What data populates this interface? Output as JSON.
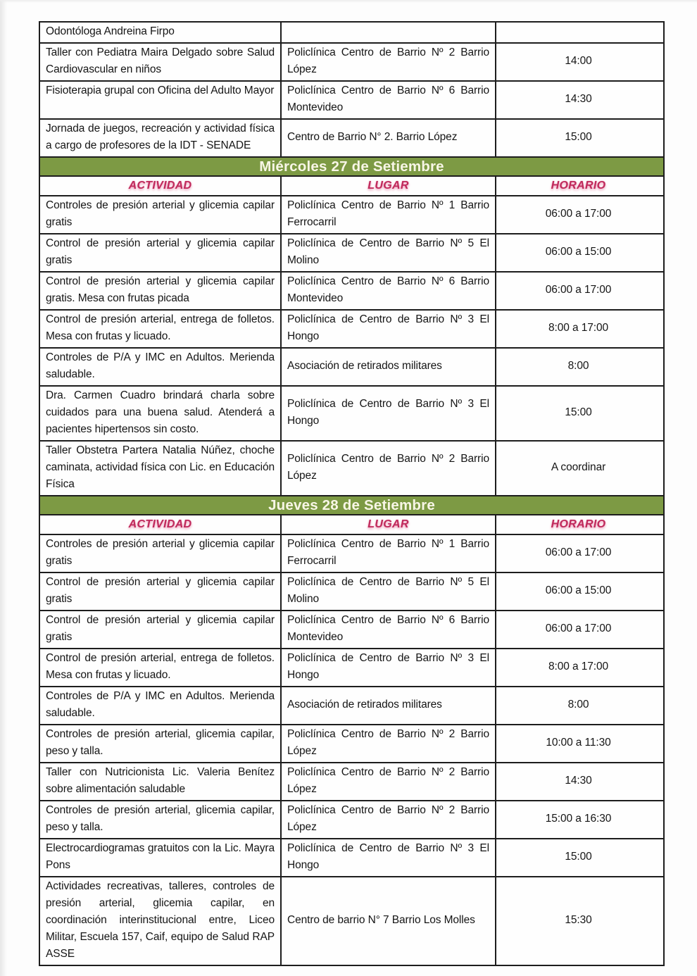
{
  "colors": {
    "page_bg": "#fdfdfd",
    "day_header_bg": "#7d9a44",
    "day_header_text": "#f8f6e6",
    "column_header_text": "#c02a5c",
    "grid_border": "#1d1d1d",
    "body_text": "#151515"
  },
  "columns": {
    "actividad": "ACTIVIDAD",
    "lugar": "LUGAR",
    "horario": "HORARIO"
  },
  "sections": [
    {
      "day_title": "",
      "show_column_headers": false,
      "rows": [
        {
          "actividad": "Odontóloga Andreina Firpo",
          "lugar": "",
          "horario": ""
        },
        {
          "actividad": "Taller con Pediatra Maira Delgado sobre Salud Cardiovascular en niños",
          "lugar": "Policlínica Centro de Barrio Nº 2 Barrio López",
          "horario": "14:00"
        },
        {
          "actividad": "Fisioterapia grupal con Oficina del Adulto Mayor",
          "lugar": "Policlínica Centro de Barrio Nº 6 Barrio Montevideo",
          "horario": "14:30"
        },
        {
          "actividad": "Jornada de juegos, recreación y actividad física a cargo de profesores de la IDT - SENADE",
          "lugar": "Centro de Barrio N° 2. Barrio López",
          "horario": "15:00"
        }
      ]
    },
    {
      "day_title": "Miércoles 27 de Setiembre",
      "show_column_headers": true,
      "rows": [
        {
          "actividad": "Controles de presión arterial y glicemia capilar gratis",
          "lugar": "Policlínica Centro de Barrio Nº 1 Barrio Ferrocarril",
          "horario": "06:00 a 17:00"
        },
        {
          "actividad": "Control de presión arterial y glicemia capilar gratis",
          "lugar": "Policlínica de Centro de Barrio Nº 5 El Molino",
          "horario": "06:00 a 15:00"
        },
        {
          "actividad": "Control de presión arterial y glicemia capilar gratis. Mesa con frutas picada",
          "lugar": "Policlínica Centro de Barrio Nº 6 Barrio Montevideo",
          "horario": "06:00 a 17:00"
        },
        {
          "actividad": "Control de presión arterial, entrega de folletos. Mesa con frutas y licuado.",
          "lugar": "Policlínica de Centro de Barrio Nº 3 El Hongo",
          "horario": "8:00 a 17:00"
        },
        {
          "actividad": "Controles de P/A y IMC en Adultos. Merienda saludable.",
          "lugar": "Asociación de retirados militares",
          "horario": "8:00"
        },
        {
          "actividad": "Dra. Carmen Cuadro brindará charla sobre cuidados para una buena salud. Atenderá a pacientes hipertensos sin costo.",
          "lugar": "Policlínica de Centro de Barrio Nº 3 El Hongo",
          "horario": "15:00"
        },
        {
          "actividad": "Taller Obstetra Partera Natalia Núñez, choche caminata, actividad física con Lic. en Educación Física",
          "lugar": "Policlínica Centro de Barrio Nº 2 Barrio López",
          "horario": "A coordinar"
        }
      ]
    },
    {
      "day_title": "Jueves 28 de Setiembre",
      "show_column_headers": true,
      "rows": [
        {
          "actividad": "Controles de presión arterial y glicemia capilar gratis",
          "lugar": "Policlínica Centro de Barrio Nº 1 Barrio Ferrocarril",
          "horario": "06:00 a 17:00"
        },
        {
          "actividad": "Control de presión arterial y glicemia capilar gratis",
          "lugar": "Policlínica de Centro de Barrio Nº 5 El Molino",
          "horario": "06:00 a 15:00"
        },
        {
          "actividad": "Control de presión arterial y glicemia capilar gratis",
          "lugar": "Policlínica Centro de Barrio Nº 6 Barrio Montevideo",
          "horario": "06:00 a 17:00"
        },
        {
          "actividad": "Control de presión arterial, entrega de folletos. Mesa con frutas y licuado.",
          "lugar": "Policlínica de Centro de Barrio Nº 3 El Hongo",
          "horario": "8:00 a 17:00"
        },
        {
          "actividad": "Controles de P/A y IMC en Adultos. Merienda saludable.",
          "lugar": "Asociación de retirados militares",
          "horario": "8:00"
        },
        {
          "actividad": "Controles de presión arterial,  glicemia capilar, peso y talla.",
          "lugar": "Policlínica Centro de Barrio Nº 2 Barrio López",
          "horario": "10:00 a 11:30"
        },
        {
          "actividad": "Taller con Nutricionista Lic. Valeria Benítez sobre alimentación saludable",
          "lugar": "Policlínica Centro de Barrio Nº 2 Barrio López",
          "horario": "14:30"
        },
        {
          "actividad": "Controles de presión arterial,  glicemia capilar, peso y talla.",
          "lugar": "Policlínica Centro de Barrio Nº 2 Barrio López",
          "horario": "15:00 a 16:30"
        },
        {
          "actividad": "Electrocardiogramas gratuitos con la Lic. Mayra Pons",
          "lugar": "Policlínica de Centro de Barrio Nº 3 El Hongo",
          "horario": "15:00"
        },
        {
          "actividad": "Actividades recreativas, talleres, controles de presión arterial, glicemia capilar, en coordinación interinstitucional entre, Liceo Militar, Escuela 157, Caif, equipo de Salud RAP ASSE",
          "lugar": "Centro de barrio N° 7 Barrio Los Molles",
          "horario": "15:30"
        }
      ]
    }
  ]
}
